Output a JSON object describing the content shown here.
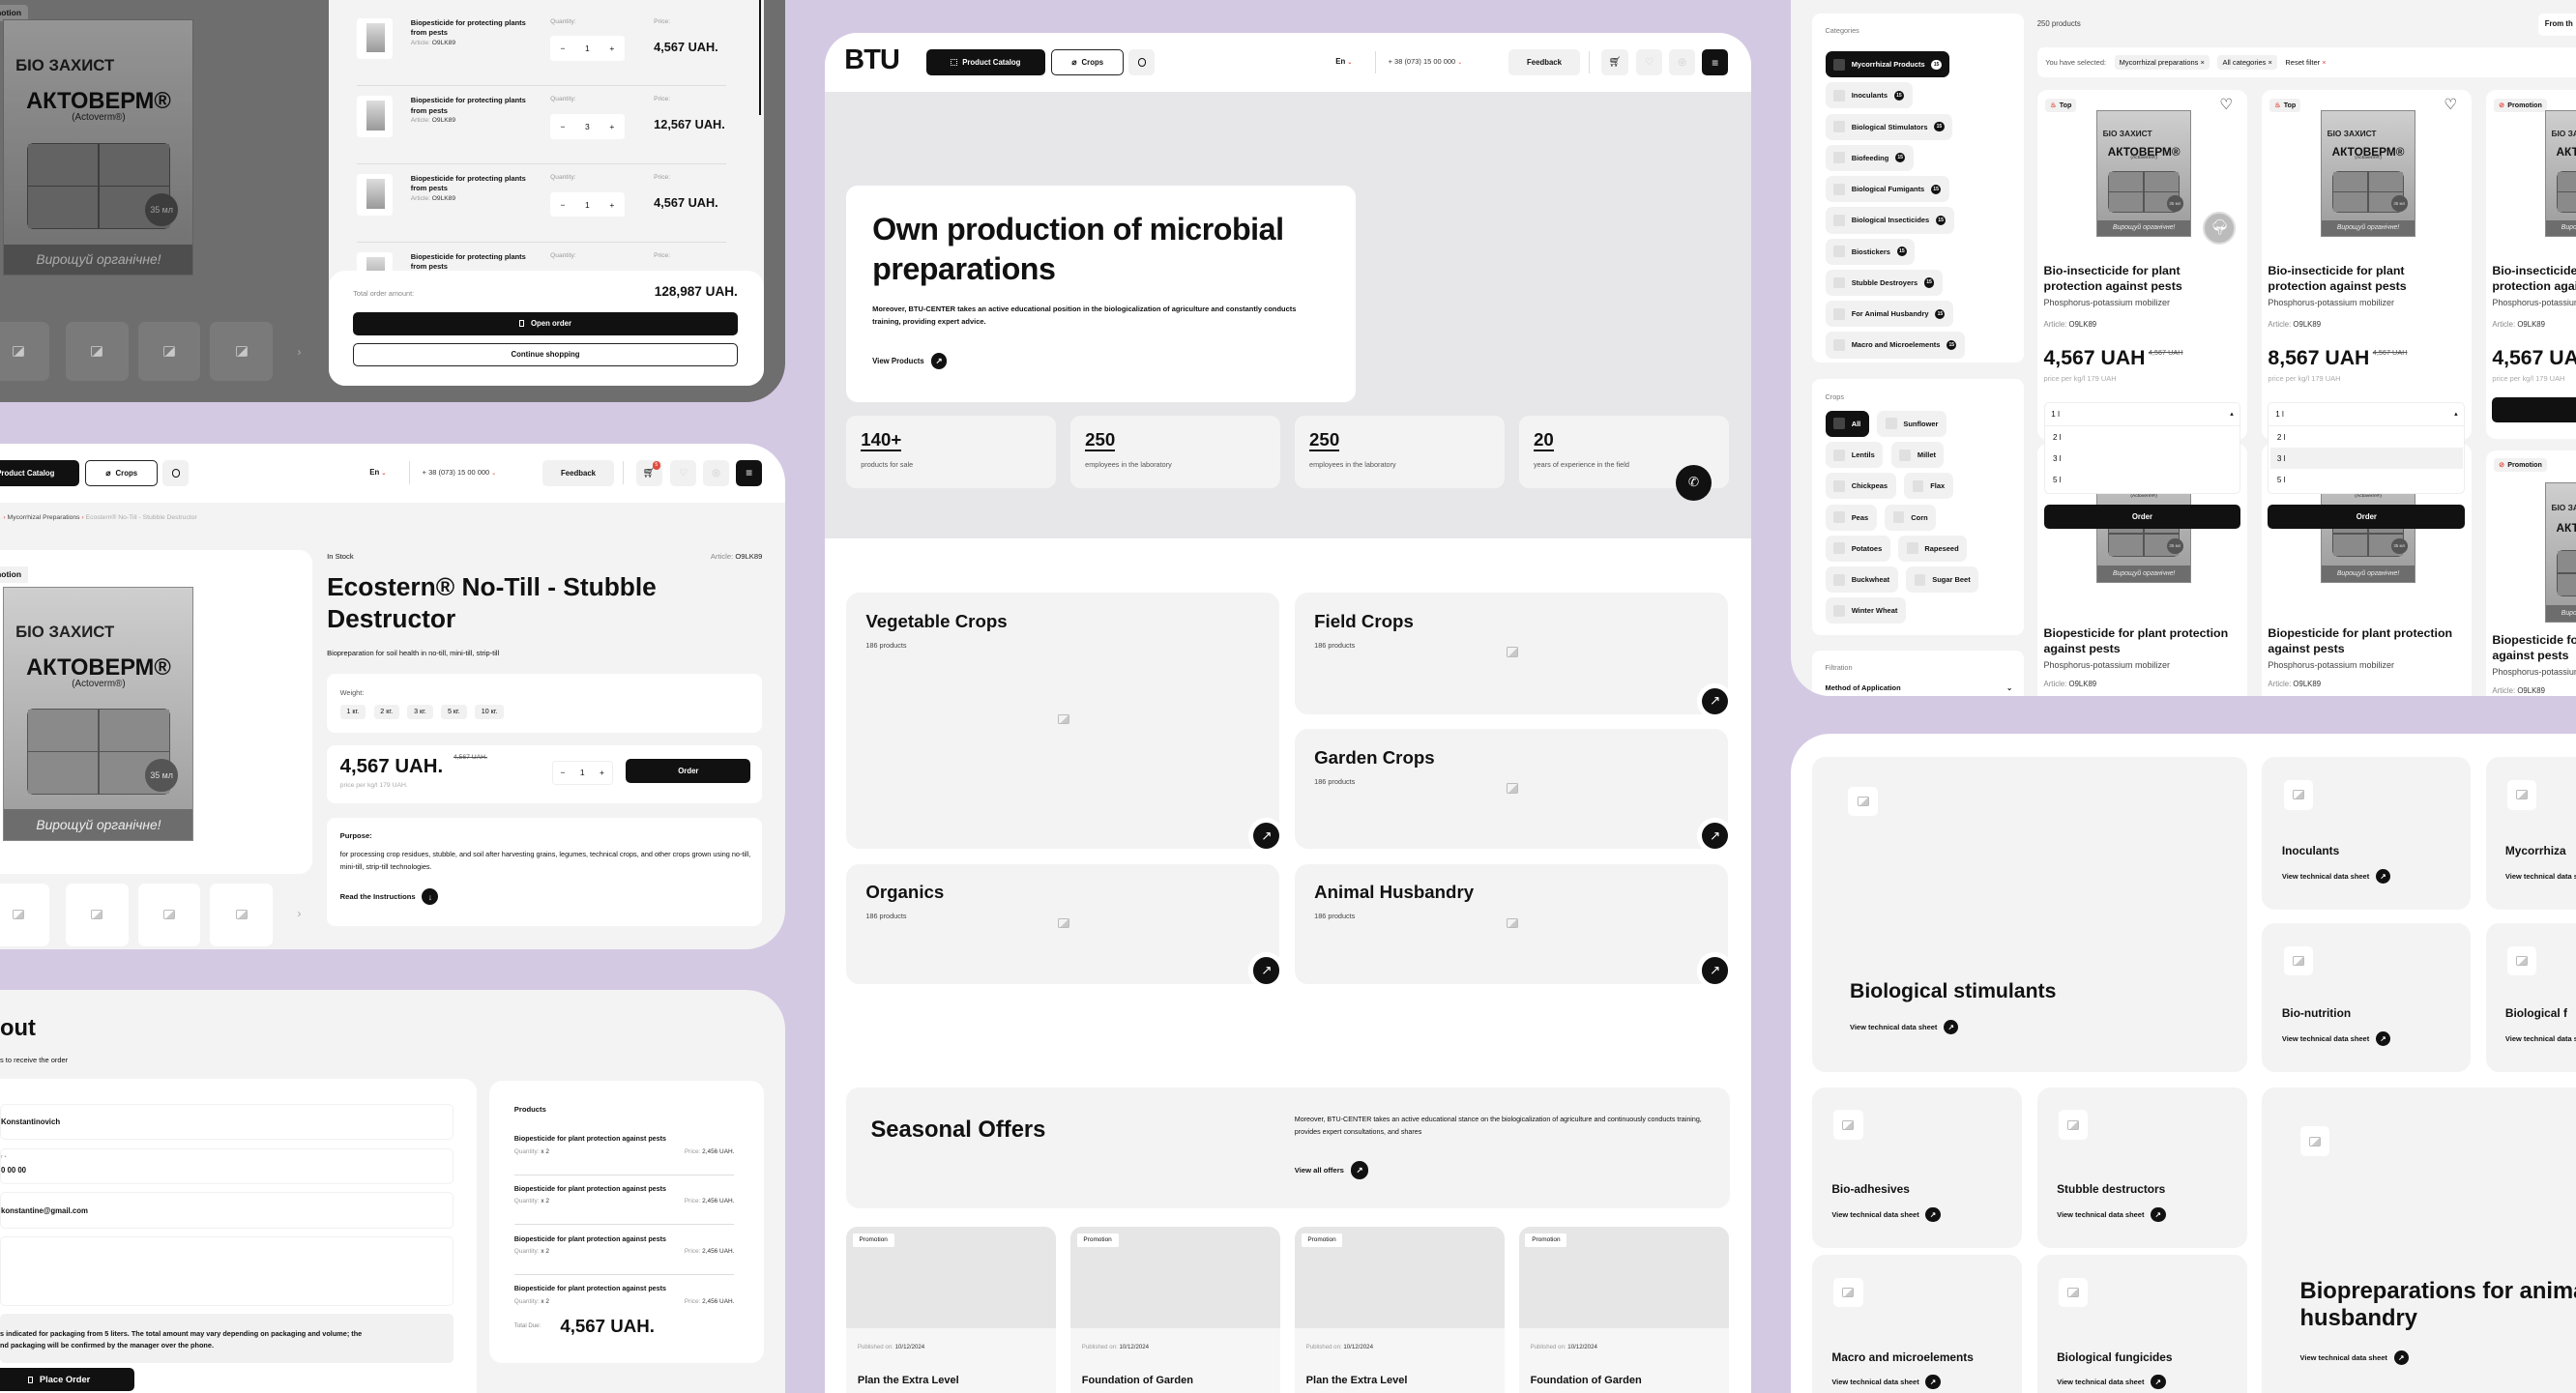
{
  "colors": {
    "background": "#d4c9e3",
    "accent": "#111111",
    "surface": "#f3f3f3",
    "badge_red": "#e04a3f"
  },
  "brand": {
    "logo": "BTU",
    "pack_maker": "БІО ЗАХИСТ",
    "pack_title": "АКТОВЕРМ®",
    "pack_sub": "(Actoverm®)",
    "pack_slogan": "Вирощуй органічне!",
    "pack_volume": "35 мл"
  },
  "header": {
    "catalog": "Product Catalog",
    "crops": "Crops",
    "lang": "En",
    "phone": "+ 38 (073) 15 00 000",
    "feedback": "Feedback",
    "cart_count": "5"
  },
  "cart_panel": {
    "promo_tag": "Promotion",
    "items": [
      {
        "title": "Biopesticide for protecting plants from pests",
        "article_label": "Article:",
        "article": "O9LK89",
        "qty_label": "Quantity:",
        "qty": "1",
        "price_label": "Price:",
        "price": "4,567 UAH."
      },
      {
        "title": "Biopesticide for protecting plants from pests",
        "article_label": "Article:",
        "article": "O9LK89",
        "qty_label": "Quantity:",
        "qty": "3",
        "price_label": "Price:",
        "price": "12,567 UAH."
      },
      {
        "title": "Biopesticide for protecting plants from pests",
        "article_label": "Article:",
        "article": "O9LK89",
        "qty_label": "Quantity:",
        "qty": "1",
        "price_label": "Price:",
        "price": "4,567 UAH."
      },
      {
        "title": "Biopesticide for protecting plants from pests",
        "qty_label": "Quantity:",
        "price_label": "Price:"
      }
    ],
    "total_label": "Total order amount:",
    "total": "128,987 UAH.",
    "open_order": "Open order",
    "continue": "Continue shopping"
  },
  "product": {
    "breadcrumb": [
      "Mycorrhizal Preparations",
      "Ecostern® No-Till - Stubble Destructor"
    ],
    "promo_tag": "Promotion",
    "stock": "In Stock",
    "article_label": "Article:",
    "article": "O9LK89",
    "title": "Ecostern® No-Till - Stubble Destructor",
    "subtitle": "Biopreparation for soil health in no-till, mini-till, strip-till",
    "weight_label": "Weight:",
    "weights": [
      "1 кг.",
      "2 кг.",
      "3 кг.",
      "5 кг.",
      "10 кг."
    ],
    "price": "4,567 UAH.",
    "old_price": "4,567 UAH.",
    "price_per": "price per kg/l 179 UAH.",
    "qty": "1",
    "order": "Order",
    "purpose_label": "Purpose:",
    "purpose": "for processing crop residues, stubble, and soil after harvesting grains, legumes, technical crops, and other crops grown using no-till, mini-till, strip-till technologies.",
    "instructions": "Read the Instructions"
  },
  "checkout": {
    "title_fragment": "out",
    "subtitle_fragment": "s to receive the order",
    "fields": [
      {
        "value": "Konstantinovich"
      },
      {
        "label": "r •",
        "value": "0 00 00"
      },
      {
        "value": "konstantine@gmail.com"
      },
      {
        "value": ""
      }
    ],
    "notice": "s indicated for packaging from 5 liters. The total amount may vary depending on packaging and volume; the\nnd packaging will be confirmed by the manager over the phone.",
    "place_order": "Place Order",
    "products_label": "Products",
    "items": [
      {
        "title": "Biopesticide for plant protection against pests",
        "qty_label": "Quantity:",
        "qty": "x 2",
        "price_label": "Price:",
        "price": "2,456 UAH."
      },
      {
        "title": "Biopesticide for plant protection against pests",
        "qty_label": "Quantity:",
        "qty": "x 2",
        "price_label": "Price:",
        "price": "2,456 UAH."
      },
      {
        "title": "Biopesticide for plant protection against pests",
        "qty_label": "Quantity:",
        "qty": "x 2",
        "price_label": "Price:",
        "price": "2,456 UAH."
      },
      {
        "title": "Biopesticide for plant protection against pests",
        "qty_label": "Quantity:",
        "qty": "x 2",
        "price_label": "Price:",
        "price": "2,456 UAH."
      }
    ],
    "total_label": "Total Due:",
    "total": "4,567 UAH."
  },
  "home": {
    "hero_title": "Own production of microbial preparations",
    "hero_text": "Moreover, BTU-CENTER takes an active educational position in the biologicalization of agriculture and constantly conducts training, providing expert advice.",
    "hero_link": "View Products",
    "stats": [
      {
        "value": "140+",
        "label": "products for sale"
      },
      {
        "value": "250",
        "label": "employees in the laboratory"
      },
      {
        "value": "250",
        "label": "employees in the laboratory"
      },
      {
        "value": "20",
        "label": "years of experience in the field"
      }
    ],
    "categories": [
      {
        "title": "Vegetable Crops",
        "count": "186 products"
      },
      {
        "title": "Field Crops",
        "count": "186 products"
      },
      {
        "title": "Garden Crops",
        "count": "186 products"
      },
      {
        "title": "Organics",
        "count": "186 products"
      },
      {
        "title": "Animal Husbandry",
        "count": "186 products"
      }
    ],
    "seasonal_title": "Seasonal Offers",
    "seasonal_text": "Moreover, BTU-CENTER takes an active educational stance on the biologicalization of agriculture and continuously conducts training, provides expert consultations, and shares",
    "seasonal_link": "View all offers",
    "offers": [
      {
        "tag": "Promotion",
        "published_label": "Published on:",
        "date": "10/12/2024",
        "title": "Plan the Extra Level"
      },
      {
        "tag": "Promotion",
        "published_label": "Published on:",
        "date": "10/12/2024",
        "title": "Foundation of Garden"
      },
      {
        "tag": "Promotion",
        "published_label": "Published on:",
        "date": "10/12/2024",
        "title": "Plan the Extra Level"
      },
      {
        "tag": "Promotion",
        "published_label": "Published on:",
        "date": "10/12/2024",
        "title": "Foundation of Garden"
      }
    ]
  },
  "catalog": {
    "categories_label": "Categories",
    "categories": [
      {
        "label": "Mycorrhizal Products",
        "count": "15",
        "selected": true
      },
      {
        "label": "Inoculants",
        "count": "15"
      },
      {
        "label": "Biological Stimulators",
        "count": "15"
      },
      {
        "label": "Biofeeding",
        "count": "15"
      },
      {
        "label": "Biological Fumigants",
        "count": "15"
      },
      {
        "label": "Biological Insecticides",
        "count": "15"
      },
      {
        "label": "Biostickers",
        "count": "15"
      },
      {
        "label": "Stubble Destroyers",
        "count": "15"
      },
      {
        "label": "For Animal Husbandry",
        "count": "15"
      },
      {
        "label": "Macro and Microelements",
        "count": "15"
      }
    ],
    "crops_label": "Crops",
    "crops": [
      {
        "label": "All",
        "selected": true
      },
      {
        "label": "Sunflower"
      },
      {
        "label": "Lentils"
      },
      {
        "label": "Millet"
      },
      {
        "label": "Chickpeas"
      },
      {
        "label": "Flax"
      },
      {
        "label": "Peas"
      },
      {
        "label": "Corn"
      },
      {
        "label": "Potatoes"
      },
      {
        "label": "Rapeseed"
      },
      {
        "label": "Buckwheat"
      },
      {
        "label": "Sugar Beet"
      },
      {
        "label": "Winter Wheat"
      }
    ],
    "filtration_label": "Filtration",
    "method_label": "Method of Application",
    "count": "250 products",
    "sort": "From th",
    "selected_label": "You have selected:",
    "filters": [
      "Mycorrhizal preparations",
      "All categories"
    ],
    "reset": "Reset filter",
    "products": [
      {
        "tag": "Top",
        "title": "Bio-insecticide for plant protection against pests",
        "subtitle": "Phosphorus-potassium mobilizer",
        "article_label": "Article:",
        "article": "O9LK89",
        "price": "4,567 UAH",
        "old_price": "4,567 UAH",
        "price_per": "price per kg/l 179 UAH",
        "select": "1 l",
        "options": [
          "2 l",
          "3 l",
          "5 l"
        ],
        "highlight": -1,
        "order": "Order"
      },
      {
        "tag": "Top",
        "title": "Bio-insecticide for plant protection against pests",
        "subtitle": "Phosphorus-potassium mobilizer",
        "article_label": "Article:",
        "article": "O9LK89",
        "price": "8,567 UAH",
        "old_price": "4,567 UAH",
        "price_per": "price per kg/l 179 UAH",
        "select": "1 l",
        "options": [
          "2 l",
          "3 l",
          "5 l"
        ],
        "highlight": 1,
        "order": "Order"
      },
      {
        "tag": "Promotion",
        "title": "Bio-insecticide for plant protection against pests",
        "subtitle": "Phosphorus-potassium mobilizer",
        "article_label": "Article:",
        "article": "O9LK89",
        "price": "4,567 UAH",
        "price_per": "price per kg/l 179 UAH"
      }
    ],
    "products_row2": [
      {
        "title": "Biopesticide for plant protection against pests",
        "subtitle": "Phosphorus-potassium mobilizer",
        "article_label": "Article:",
        "article": "O9LK89"
      },
      {
        "title": "Biopesticide for plant protection against pests",
        "subtitle": "Phosphorus-potassium mobilizer",
        "article_label": "Article:",
        "article": "O9LK89"
      },
      {
        "tag": "Promotion",
        "title": "Biopesticide for plant protection against pests",
        "subtitle": "Phosphorus-potassium mobilizer",
        "article_label": "Article:",
        "article": "O9LK89"
      }
    ]
  },
  "tiles": {
    "link": "View technical data sheet",
    "items": [
      {
        "title": "Biological stimulants"
      },
      {
        "title": "Inoculants"
      },
      {
        "title": "Mycorrhiza"
      },
      {
        "title": "Bio-nutrition"
      },
      {
        "title": "Biological f"
      },
      {
        "title": "Bio-adhesives"
      },
      {
        "title": "Stubble destructors"
      },
      {
        "title": "Macro and microelements"
      },
      {
        "title": "Biological fungicides"
      },
      {
        "title": "Biopreparations for animal husbandry"
      }
    ]
  }
}
